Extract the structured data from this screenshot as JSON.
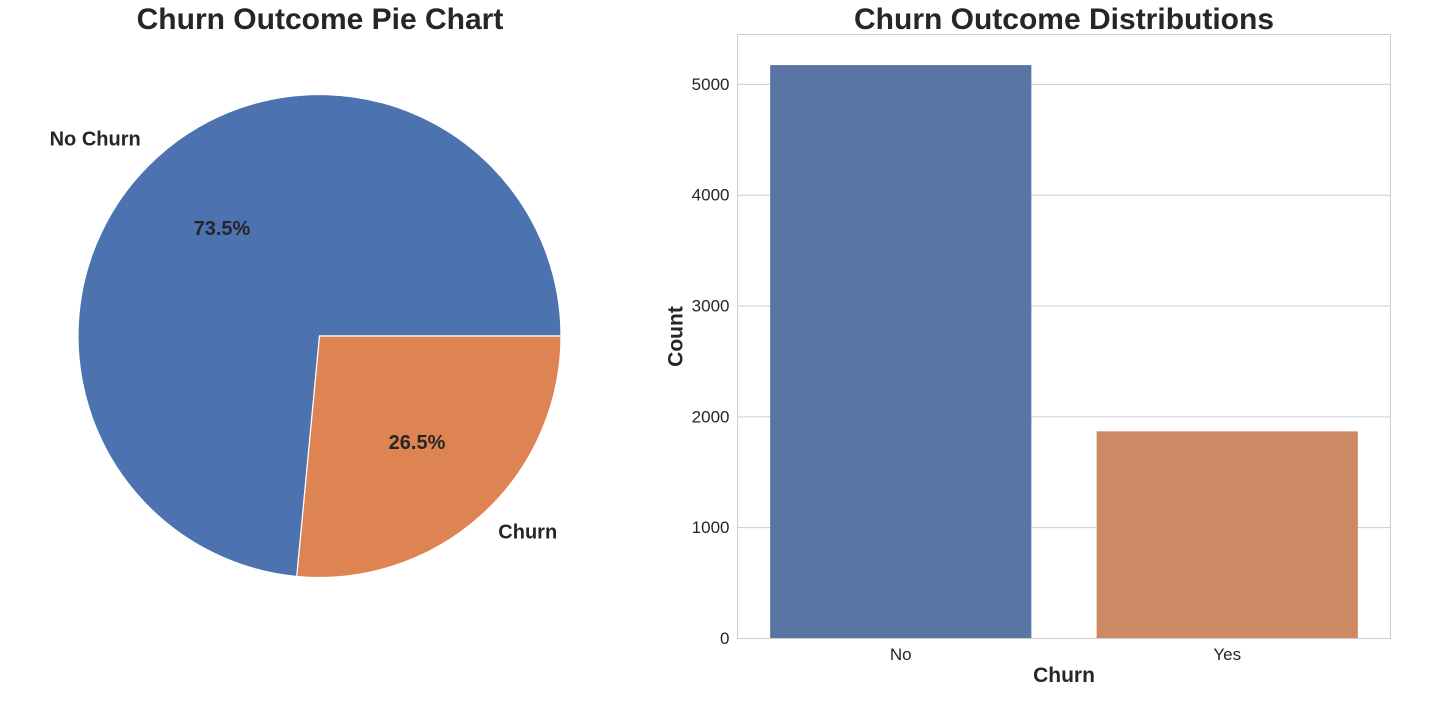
{
  "chart_data": [
    {
      "type": "pie",
      "title": "Churn Outcome Pie Chart",
      "labels": [
        "No Churn",
        "Churn"
      ],
      "values": [
        73.5,
        26.5
      ],
      "value_labels": [
        "73.5%",
        "26.5%"
      ],
      "colors": [
        "#4c72b0",
        "#dd8452"
      ],
      "start_angle_deg": 0,
      "direction": "counterclockwise"
    },
    {
      "type": "bar",
      "title": "Churn Outcome Distributions",
      "xlabel": "Churn",
      "ylabel": "Count",
      "categories": [
        "No",
        "Yes"
      ],
      "values": [
        5174,
        1869
      ],
      "colors": [
        "#5975a4",
        "#cc8963"
      ],
      "ylim": [
        0,
        5450
      ],
      "yticks": [
        0,
        1000,
        2000,
        3000,
        4000,
        5000
      ],
      "grid": true
    }
  ]
}
